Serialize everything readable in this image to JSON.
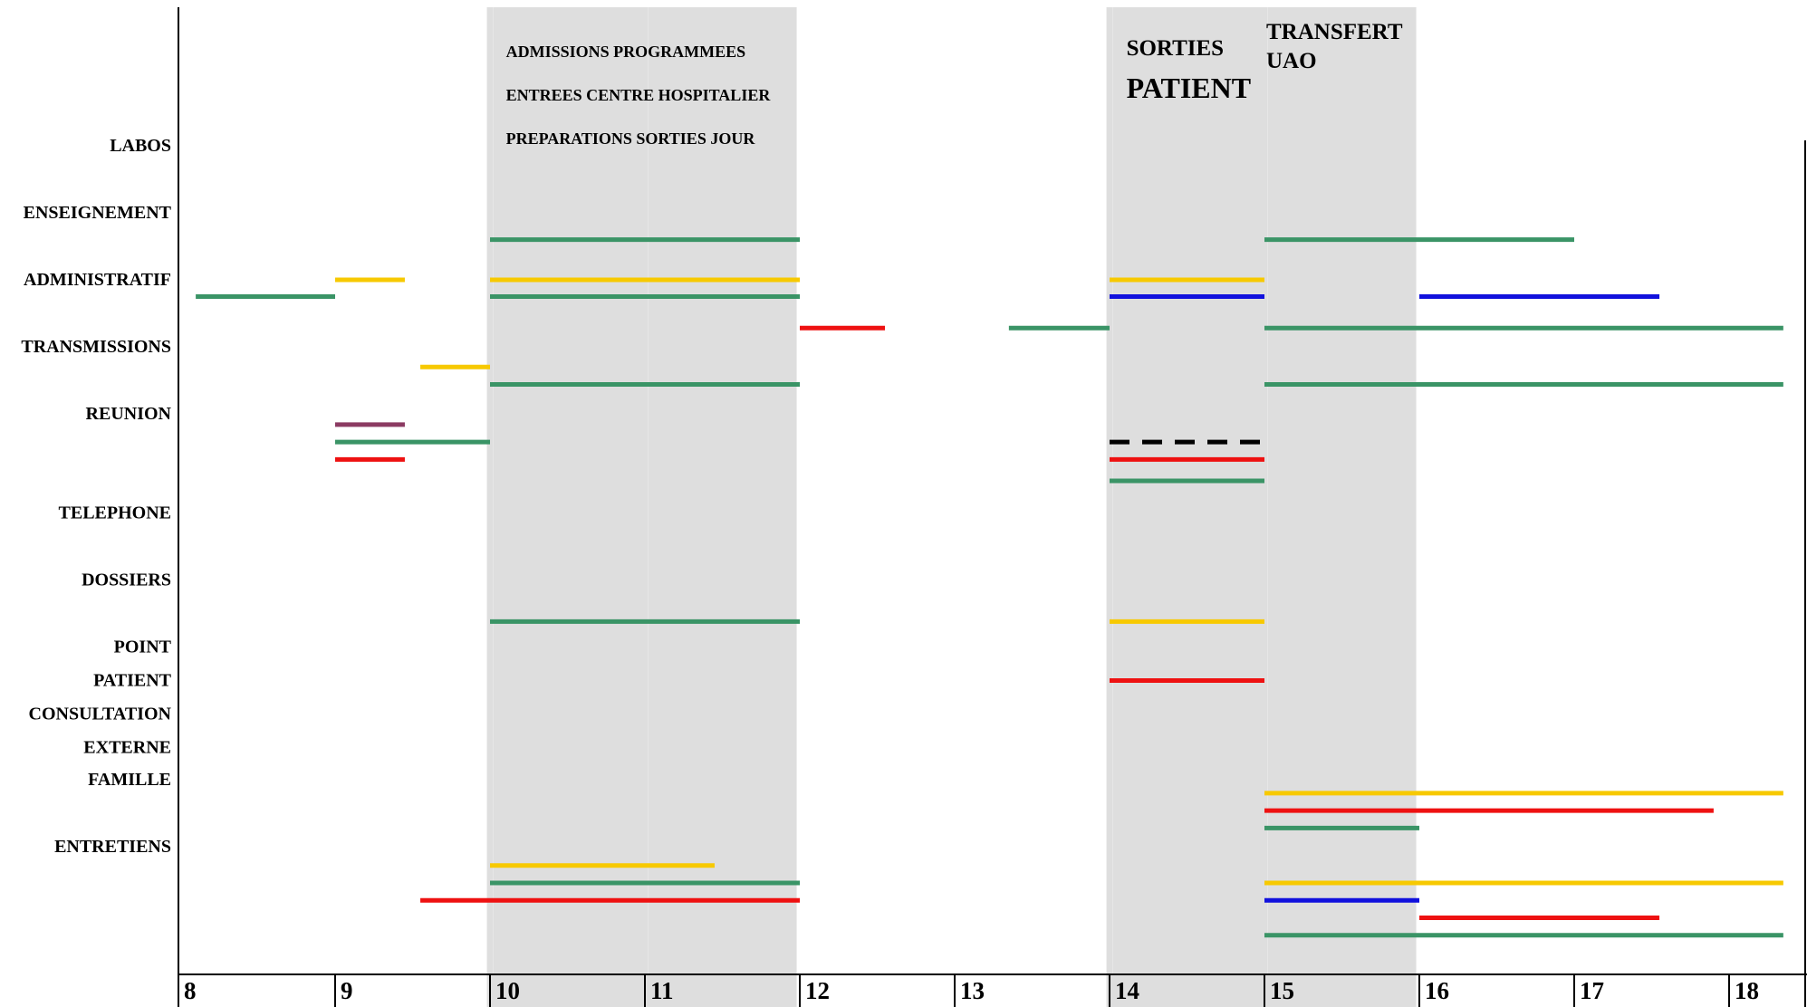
{
  "chart_data": {
    "type": "gantt",
    "xlim": [
      8,
      18.9
    ],
    "colors": {
      "green": "#3a9466",
      "yellow": "#f7c900",
      "red": "#ee1111",
      "blue": "#1111dd",
      "purple": "#8b3a62",
      "black": "#000000",
      "shade": "#dedede"
    },
    "categories": [
      "LABOS",
      "ENSEIGNEMENT",
      "ADMINISTRATIF",
      "TRANSMISSIONS",
      "REUNION",
      "TELEPHONE",
      "DOSSIERS",
      "POINT",
      "PATIENT",
      "CONSULTATION",
      "EXTERNE",
      "FAMILLE",
      "ENTRETIENS"
    ],
    "x_ticks": [
      "8",
      "9",
      "10",
      "11",
      "12",
      "13",
      "14",
      "15",
      "16",
      "17",
      "18"
    ],
    "shaded_zones": [
      {
        "start": 9.98,
        "end": 11.98,
        "labels": [
          "ADMISSIONS PROGRAMMEES",
          "ENTREES CENTRE HOSPITALIER",
          "PREPARATIONS SORTIES JOUR"
        ]
      },
      {
        "start": 13.98,
        "end": 15.98,
        "labels": [
          "SORTIES",
          "PATIENT"
        ],
        "side_labels": [
          "TRANSFERT",
          "UAO"
        ]
      }
    ],
    "bars": [
      {
        "category": "ADMINISTRATIF",
        "start": 10.0,
        "end": 12.0,
        "color": "green",
        "offset": -0.6
      },
      {
        "category": "ADMINISTRATIF",
        "start": 15.0,
        "end": 17.0,
        "color": "green",
        "offset": -0.6
      },
      {
        "category": "ADMINISTRATIF",
        "start": 9.0,
        "end": 9.45,
        "color": "yellow",
        "offset": 0.0
      },
      {
        "category": "ADMINISTRATIF",
        "start": 10.0,
        "end": 12.0,
        "color": "yellow",
        "offset": 0.0
      },
      {
        "category": "ADMINISTRATIF",
        "start": 14.0,
        "end": 15.0,
        "color": "yellow",
        "offset": 0.0
      },
      {
        "category": "ADMINISTRATIF",
        "start": 8.1,
        "end": 9.0,
        "color": "green",
        "offset": 0.25
      },
      {
        "category": "ADMINISTRATIF",
        "start": 10.0,
        "end": 12.0,
        "color": "green",
        "offset": 0.25
      },
      {
        "category": "ADMINISTRATIF",
        "start": 14.0,
        "end": 15.0,
        "color": "blue",
        "offset": 0.25
      },
      {
        "category": "ADMINISTRATIF",
        "start": 16.0,
        "end": 17.55,
        "color": "blue",
        "offset": 0.25
      },
      {
        "category": "TRANSMISSIONS",
        "start": 12.0,
        "end": 12.55,
        "color": "red",
        "offset": -0.28
      },
      {
        "category": "TRANSMISSIONS",
        "start": 13.35,
        "end": 14.0,
        "color": "green",
        "offset": -0.28
      },
      {
        "category": "TRANSMISSIONS",
        "start": 15.0,
        "end": 18.35,
        "color": "green",
        "offset": -0.28
      },
      {
        "category": "TRANSMISSIONS",
        "start": 9.55,
        "end": 10.0,
        "color": "yellow",
        "offset": 0.3
      },
      {
        "category": "TRANSMISSIONS",
        "start": 10.0,
        "end": 12.0,
        "color": "green",
        "offset": 0.56
      },
      {
        "category": "TRANSMISSIONS",
        "start": 15.0,
        "end": 18.35,
        "color": "green",
        "offset": 0.56
      },
      {
        "category": "REUNION",
        "start": 9.0,
        "end": 9.45,
        "color": "purple",
        "offset": 0.16
      },
      {
        "category": "REUNION",
        "start": 9.0,
        "end": 10.0,
        "color": "green",
        "offset": 0.42
      },
      {
        "category": "REUNION",
        "start": 14.0,
        "end": 15.0,
        "color": "black",
        "offset": 0.42,
        "dashed": true
      },
      {
        "category": "REUNION",
        "start": 9.0,
        "end": 9.45,
        "color": "red",
        "offset": 0.68
      },
      {
        "category": "REUNION",
        "start": 14.0,
        "end": 15.0,
        "color": "red",
        "offset": 0.68
      },
      {
        "category": "REUNION",
        "start": 14.0,
        "end": 15.0,
        "color": "green",
        "offset": 1.0
      },
      {
        "category": "DOSSIERS",
        "start": 10.0,
        "end": 12.0,
        "color": "green",
        "offset": 0.62
      },
      {
        "category": "DOSSIERS",
        "start": 14.0,
        "end": 15.0,
        "color": "yellow",
        "offset": 0.62
      },
      {
        "category": "PATIENT",
        "start": 14.0,
        "end": 15.0,
        "color": "red",
        "offset": 0.0
      },
      {
        "category": "FAMILLE",
        "start": 15.0,
        "end": 18.35,
        "color": "yellow",
        "offset": 0.2
      },
      {
        "category": "FAMILLE",
        "start": 15.0,
        "end": 17.9,
        "color": "red",
        "offset": 0.46
      },
      {
        "category": "FAMILLE",
        "start": 15.0,
        "end": 16.0,
        "color": "green",
        "offset": 0.72
      },
      {
        "category": "ENTRETIENS",
        "start": 10.0,
        "end": 11.45,
        "color": "yellow",
        "offset": 0.28
      },
      {
        "category": "ENTRETIENS",
        "start": 10.0,
        "end": 12.0,
        "color": "green",
        "offset": 0.54
      },
      {
        "category": "ENTRETIENS",
        "start": 15.0,
        "end": 18.35,
        "color": "yellow",
        "offset": 0.54
      },
      {
        "category": "ENTRETIENS",
        "start": 9.55,
        "end": 12.0,
        "color": "red",
        "offset": 0.8
      },
      {
        "category": "ENTRETIENS",
        "start": 15.0,
        "end": 16.0,
        "color": "blue",
        "offset": 0.8
      },
      {
        "category": "ENTRETIENS",
        "start": 16.0,
        "end": 17.55,
        "color": "red",
        "offset": 1.06
      },
      {
        "category": "ENTRETIENS",
        "start": 15.0,
        "end": 18.35,
        "color": "green",
        "offset": 1.32
      }
    ]
  }
}
